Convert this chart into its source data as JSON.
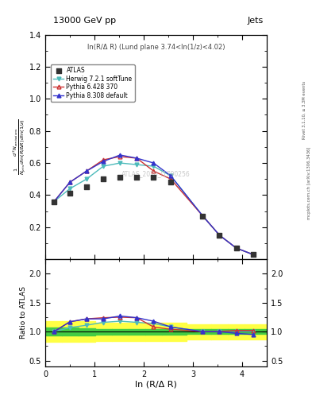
{
  "title_left": "13000 GeV pp",
  "title_right": "Jets",
  "annotation": "ln(R/Δ R) (Lund plane 3.74<ln(1/z)<4.02)",
  "watermark": "ATLAS_2020_I1790256",
  "right_label": "Rivet 3.1.10, ≥ 3.3M events",
  "right_label2": "mcplots.cern.ch [arXiv:1306.3436]",
  "xlabel": "ln (R/Δ R)",
  "ylabel_line1": "d² Nₑₘᵢₛₛᵢₒₙₛ",
  "ylabel_line2": "1",
  "ylabel_ratio": "Ratio to ATLAS",
  "x_data": [
    0.18,
    0.5,
    0.84,
    1.18,
    1.52,
    1.86,
    2.2,
    2.55,
    3.2,
    3.54,
    3.88,
    4.22
  ],
  "atlas_y": [
    0.36,
    0.41,
    0.45,
    0.5,
    0.51,
    0.51,
    0.51,
    0.48,
    0.27,
    0.15,
    0.07,
    0.03
  ],
  "herwig_y": [
    0.36,
    0.44,
    0.5,
    0.58,
    0.6,
    0.59,
    0.58,
    0.52,
    0.27,
    0.15,
    0.07,
    0.03
  ],
  "pythia6_y": [
    0.36,
    0.48,
    0.55,
    0.62,
    0.64,
    0.63,
    0.55,
    0.5,
    0.27,
    0.15,
    0.07,
    0.03
  ],
  "pythia8_y": [
    0.36,
    0.48,
    0.55,
    0.61,
    0.65,
    0.63,
    0.6,
    0.52,
    0.27,
    0.15,
    0.07,
    0.03
  ],
  "herwig_ratio": [
    1.0,
    1.07,
    1.11,
    1.16,
    1.18,
    1.16,
    1.14,
    1.08,
    1.0,
    1.0,
    1.0,
    1.0
  ],
  "pythia6_ratio": [
    1.0,
    1.17,
    1.22,
    1.24,
    1.25,
    1.24,
    1.08,
    1.04,
    1.0,
    1.0,
    1.02,
    1.02
  ],
  "pythia8_ratio": [
    1.0,
    1.17,
    1.22,
    1.22,
    1.27,
    1.24,
    1.18,
    1.08,
    1.0,
    1.0,
    0.97,
    0.95
  ],
  "band_x_edges": [
    0.0,
    0.34,
    0.67,
    1.01,
    1.35,
    1.69,
    2.03,
    2.375,
    2.875,
    3.37,
    3.71,
    4.05,
    4.5
  ],
  "yellow_band_lo": [
    0.82,
    0.82,
    0.82,
    0.84,
    0.84,
    0.84,
    0.84,
    0.84,
    0.87,
    0.87,
    0.87,
    0.87
  ],
  "yellow_band_hi": [
    1.18,
    1.18,
    1.18,
    1.16,
    1.16,
    1.16,
    1.16,
    1.16,
    1.13,
    1.13,
    1.13,
    1.13
  ],
  "green_band_lo": [
    0.93,
    0.93,
    0.94,
    0.95,
    0.95,
    0.95,
    0.95,
    0.95,
    0.96,
    0.96,
    0.96,
    0.96
  ],
  "green_band_hi": [
    1.07,
    1.07,
    1.06,
    1.05,
    1.05,
    1.05,
    1.05,
    1.05,
    1.04,
    1.04,
    1.04,
    1.04
  ],
  "atlas_color": "#333333",
  "herwig_color": "#4DBBBB",
  "pythia6_color": "#CC3333",
  "pythia8_color": "#3333CC",
  "yellow_color": "#FFFF44",
  "green_color": "#44CC44",
  "xlim": [
    0,
    4.5
  ],
  "ylim_main": [
    0.0,
    1.4
  ],
  "ylim_ratio": [
    0.4,
    2.25
  ],
  "yticks_main": [
    0.2,
    0.4,
    0.6,
    0.8,
    1.0,
    1.2,
    1.4
  ],
  "yticks_ratio": [
    0.5,
    1.0,
    1.5,
    2.0
  ],
  "xticks": [
    0,
    1,
    2,
    3,
    4
  ]
}
